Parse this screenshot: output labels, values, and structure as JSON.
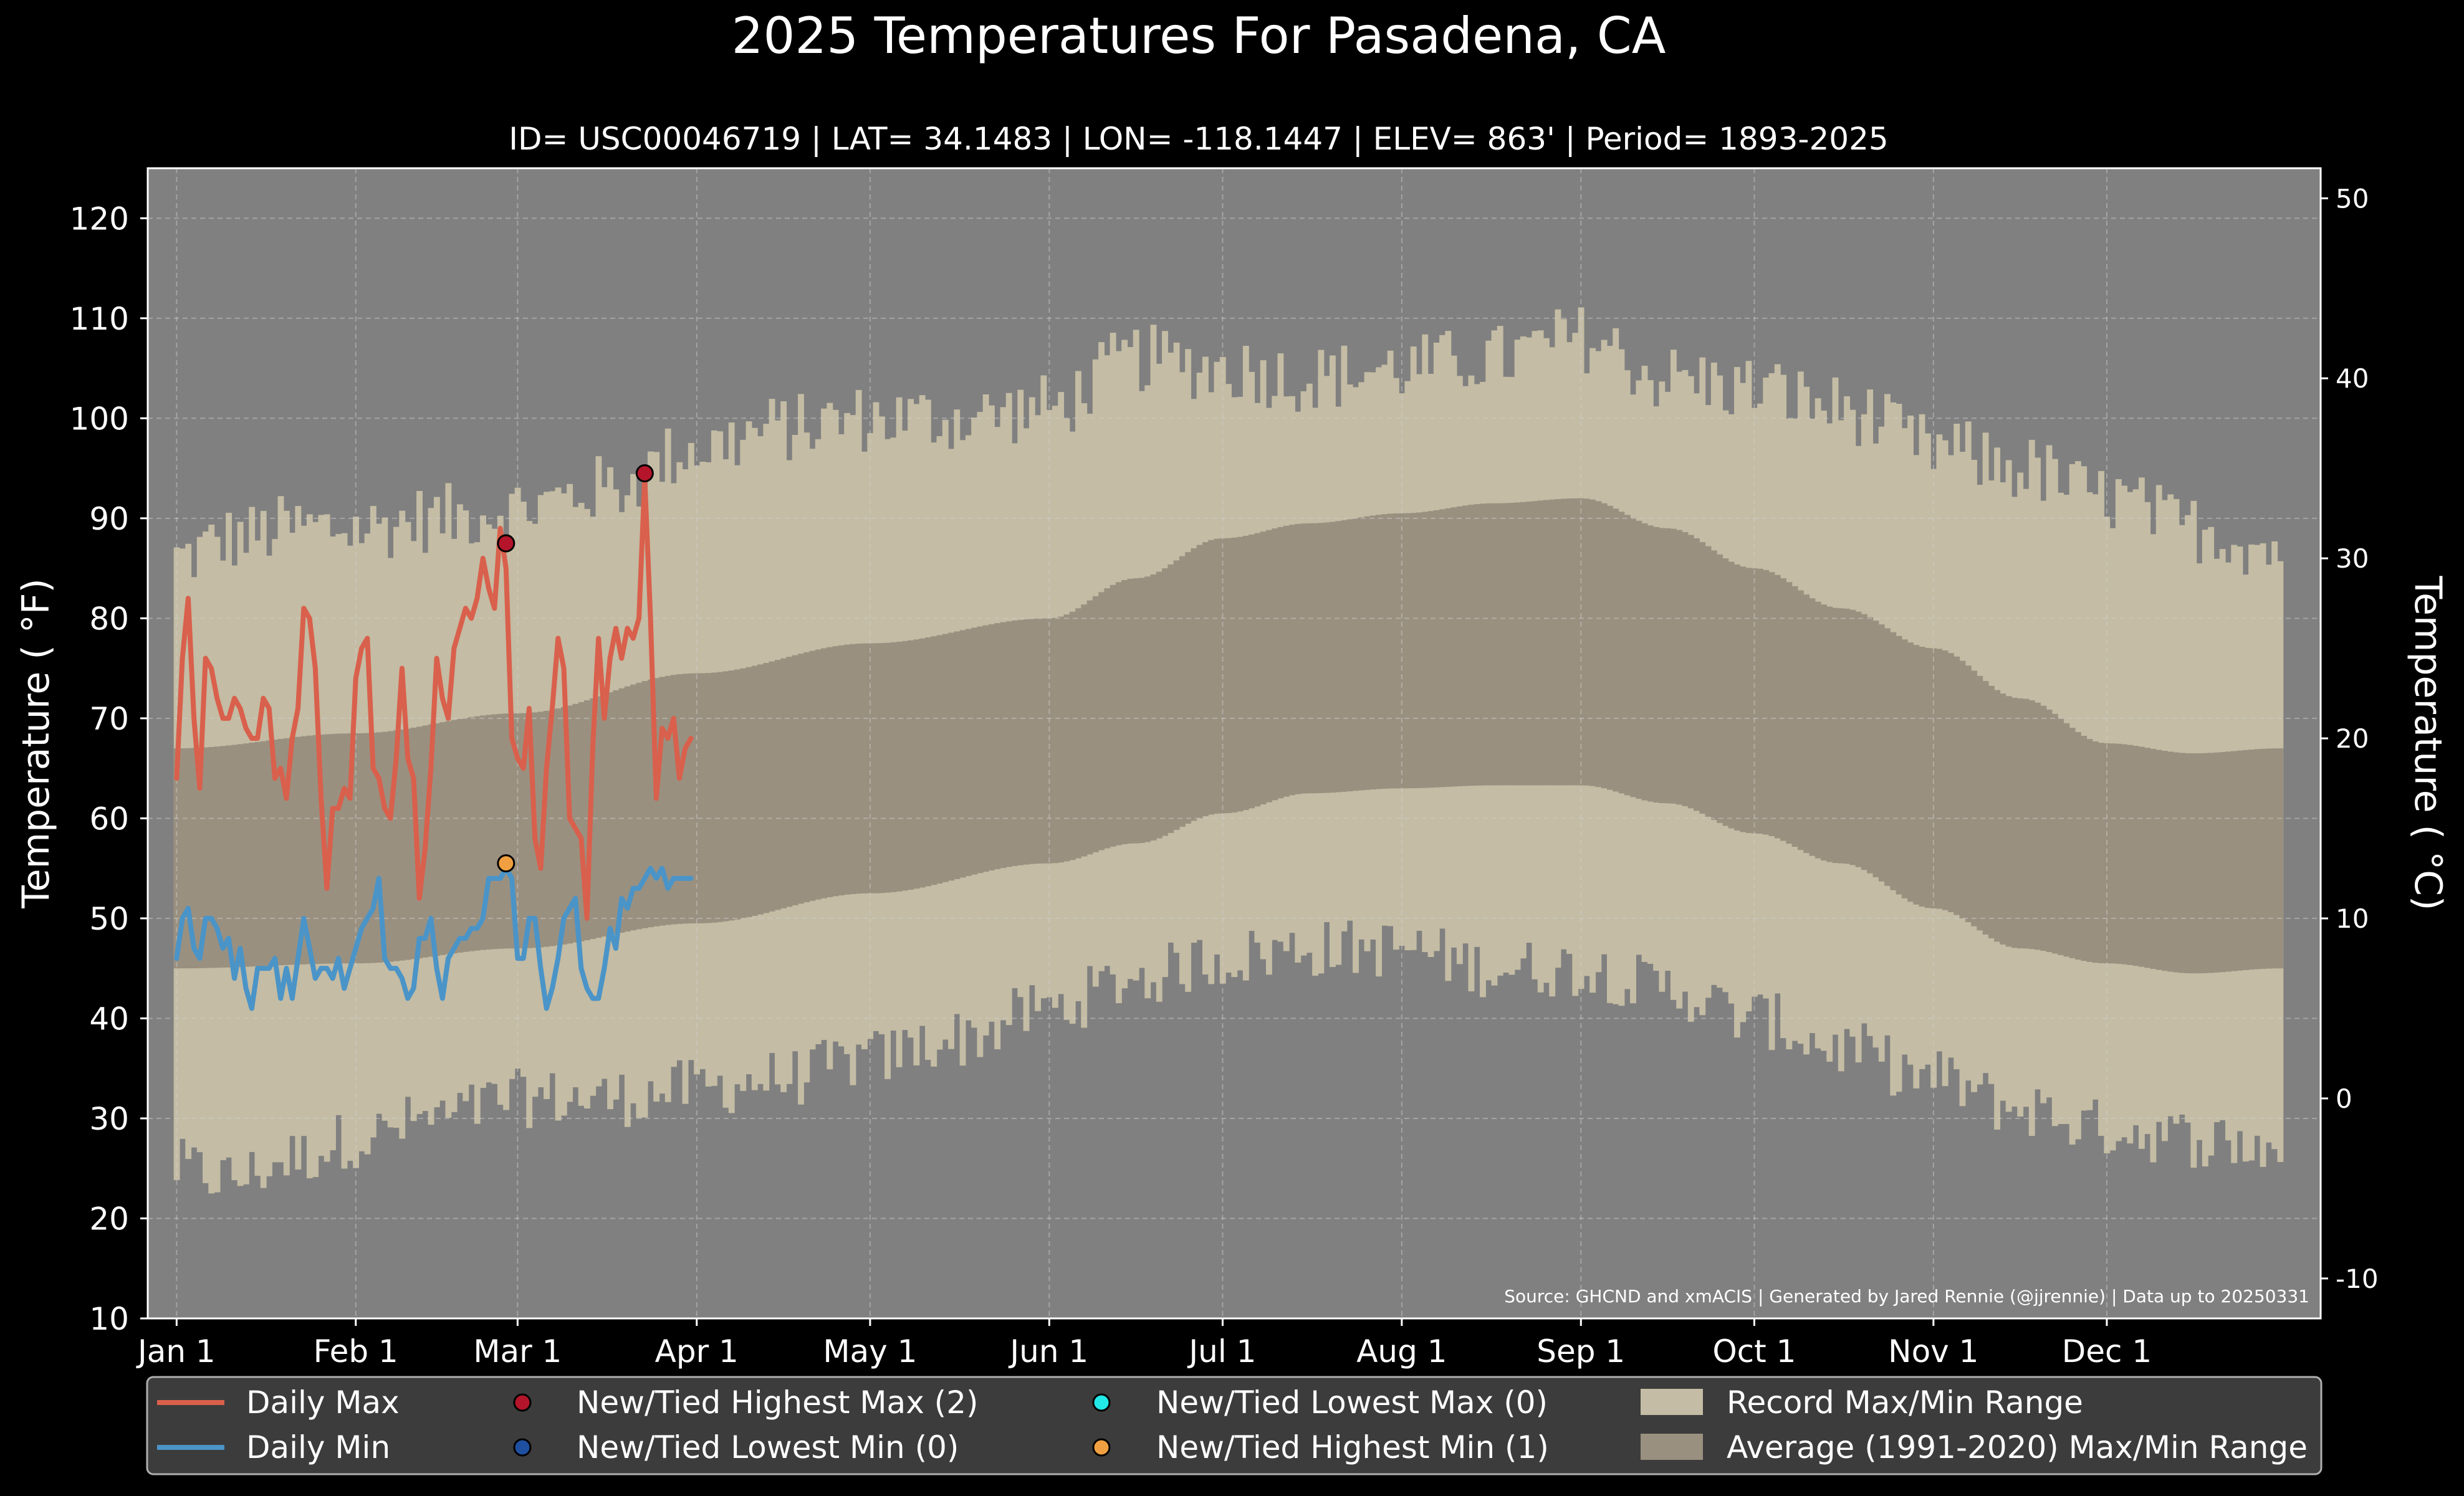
{
  "chart_data": {
    "type": "line",
    "title": "2025 Temperatures For Pasadena, CA",
    "subtitle": "ID= USC00046719 | LAT= 34.1483 | LON= -118.1447 | ELEV= 863' | Period= 1893-2025",
    "ylabel": "Temperature ( °F)",
    "y2label": "Temperature ( °C)",
    "source": "Source: GHCND and xmACIS | Generated by Jared Rennie (@jjrennie) | Data up to 20250331",
    "ylim": [
      10,
      125
    ],
    "y2lim": [
      -12.22,
      51.67
    ],
    "xlim": [
      -5,
      371
    ],
    "y_ticks": [
      10,
      20,
      30,
      40,
      50,
      60,
      70,
      80,
      90,
      100,
      110,
      120
    ],
    "y2_ticks": [
      -10,
      0,
      10,
      20,
      30,
      40,
      50
    ],
    "x_ticks": [
      {
        "label": "Jan 1",
        "day": 0
      },
      {
        "label": "Feb 1",
        "day": 31
      },
      {
        "label": "Mar 1",
        "day": 59
      },
      {
        "label": "Apr 1",
        "day": 90
      },
      {
        "label": "May 1",
        "day": 120
      },
      {
        "label": "Jun 1",
        "day": 151
      },
      {
        "label": "Jul 1",
        "day": 181
      },
      {
        "label": "Aug 1",
        "day": 212
      },
      {
        "label": "Sep 1",
        "day": 243
      },
      {
        "label": "Oct 1",
        "day": 273
      },
      {
        "label": "Nov 1",
        "day": 304
      },
      {
        "label": "Dec 1",
        "day": 334
      }
    ],
    "grid": true,
    "legend_position": "bottom",
    "colors": {
      "background": "#000000",
      "plot_bg": "#808080",
      "record_range": "#c4bca4",
      "normal_range": "#9a9080",
      "daily_max": "#d9604c",
      "daily_min": "#4a94c8",
      "highest_max_marker": "#b5152b",
      "lowest_min_marker": "#1f4fa0",
      "lowest_max_marker": "#22e8e8",
      "highest_min_marker": "#f0a040"
    },
    "legend": {
      "daily_max": "Daily Max",
      "daily_min": "Daily Min",
      "highest_max": "New/Tied Highest Max (2)",
      "lowest_min": "New/Tied Lowest Min (0)",
      "lowest_max": "New/Tied Lowest Max (0)",
      "highest_min": "New/Tied Highest Min (1)",
      "record_range": "Record Max/Min Range",
      "normal_range": "Average (1991-2020) Max/Min Range"
    },
    "record_max_keypoints": {
      "day": [
        0,
        10,
        20,
        31,
        45,
        59,
        75,
        90,
        105,
        120,
        135,
        151,
        166,
        181,
        196,
        212,
        228,
        243,
        258,
        273,
        288,
        304,
        319,
        334,
        349,
        364
      ],
      "value": [
        86,
        88,
        89,
        89,
        90,
        91,
        93,
        97,
        99,
        100,
        100,
        101,
        106,
        105,
        104,
        105,
        106,
        108,
        104,
        103,
        101,
        97,
        95,
        92,
        89,
        87
      ]
    },
    "record_min_keypoints": {
      "day": [
        0,
        10,
        20,
        31,
        45,
        59,
        75,
        90,
        105,
        120,
        135,
        151,
        166,
        181,
        196,
        212,
        228,
        243,
        258,
        273,
        288,
        304,
        319,
        334,
        349,
        364
      ],
      "value": [
        25,
        24,
        26,
        28,
        30,
        32,
        32,
        33,
        34,
        36,
        38,
        41,
        44,
        46,
        47,
        47,
        45,
        45,
        43,
        40,
        37,
        34,
        31,
        29,
        28,
        27
      ]
    },
    "normal_max_keypoints": {
      "day": [
        0,
        31,
        59,
        90,
        120,
        151,
        166,
        181,
        196,
        212,
        228,
        243,
        258,
        273,
        288,
        304,
        319,
        334,
        349,
        364
      ],
      "value": [
        67,
        68.5,
        70.5,
        74.5,
        77.5,
        80,
        84,
        88,
        89.5,
        90.5,
        91.5,
        92,
        89,
        85,
        81,
        77,
        72,
        67.5,
        66.5,
        67
      ]
    },
    "normal_min_keypoints": {
      "day": [
        0,
        31,
        59,
        90,
        120,
        151,
        166,
        181,
        196,
        212,
        228,
        243,
        258,
        273,
        288,
        304,
        319,
        334,
        349,
        364
      ],
      "value": [
        45,
        45.5,
        47,
        49.5,
        52.5,
        55.5,
        57.5,
        60.5,
        62.5,
        63,
        63.3,
        63.3,
        61.5,
        58.5,
        55.5,
        51,
        47,
        45.5,
        44.5,
        45
      ]
    },
    "series": [
      {
        "name": "Daily Max",
        "x": [
          0,
          1,
          2,
          3,
          4,
          5,
          6,
          7,
          8,
          9,
          10,
          11,
          12,
          13,
          14,
          15,
          16,
          17,
          18,
          19,
          20,
          21,
          22,
          23,
          24,
          25,
          26,
          27,
          28,
          29,
          30,
          31,
          32,
          33,
          34,
          35,
          36,
          37,
          38,
          39,
          40,
          41,
          42,
          43,
          44,
          45,
          46,
          47,
          48,
          49,
          50,
          51,
          52,
          53,
          54,
          55,
          56,
          57,
          58,
          59,
          60,
          61,
          62,
          63,
          64,
          65,
          66,
          67,
          68,
          69,
          70,
          71,
          72,
          73,
          74,
          75,
          76,
          77,
          78,
          79,
          80,
          81,
          82,
          83,
          84,
          85,
          86,
          87,
          88,
          89
        ],
        "values": [
          64,
          76,
          82,
          70,
          63,
          76,
          75,
          72,
          70,
          70,
          72,
          71,
          69,
          68,
          68,
          72,
          71,
          64,
          65,
          62,
          68,
          71,
          81,
          80,
          75,
          62,
          53,
          61,
          61,
          63,
          62,
          74,
          77,
          78,
          65,
          64,
          61,
          60,
          66,
          75,
          66,
          64,
          52,
          57,
          65,
          76,
          72,
          70,
          77,
          79,
          81,
          80,
          82,
          86,
          83,
          81,
          89,
          85,
          68,
          66,
          65,
          71,
          58,
          55,
          65,
          71,
          78,
          75,
          60,
          59,
          58,
          50,
          67,
          78,
          70,
          76,
          79,
          76,
          79,
          78,
          80,
          94,
          80,
          62,
          69,
          68,
          70,
          64,
          67,
          68
        ]
      },
      {
        "name": "Daily Min",
        "x": [
          0,
          1,
          2,
          3,
          4,
          5,
          6,
          7,
          8,
          9,
          10,
          11,
          12,
          13,
          14,
          15,
          16,
          17,
          18,
          19,
          20,
          21,
          22,
          23,
          24,
          25,
          26,
          27,
          28,
          29,
          30,
          31,
          32,
          33,
          34,
          35,
          36,
          37,
          38,
          39,
          40,
          41,
          42,
          43,
          44,
          45,
          46,
          47,
          48,
          49,
          50,
          51,
          52,
          53,
          54,
          55,
          56,
          57,
          58,
          59,
          60,
          61,
          62,
          63,
          64,
          65,
          66,
          67,
          68,
          69,
          70,
          71,
          72,
          73,
          74,
          75,
          76,
          77,
          78,
          79,
          80,
          81,
          82,
          83,
          84,
          85,
          86,
          87,
          88,
          89
        ],
        "values": [
          46,
          50,
          51,
          47,
          46,
          50,
          50,
          49,
          47,
          48,
          44,
          47,
          43,
          41,
          45,
          45,
          45,
          46,
          42,
          45,
          42,
          46,
          50,
          47,
          44,
          45,
          45,
          44,
          46,
          43,
          45,
          47,
          49,
          50,
          51,
          54,
          46,
          45,
          45,
          44,
          42,
          43,
          48,
          48,
          50,
          45,
          42,
          46,
          47,
          48,
          48,
          49,
          49,
          50,
          54,
          54,
          54,
          55,
          54,
          46,
          46,
          50,
          50,
          45,
          41,
          43,
          46,
          50,
          51,
          52,
          45,
          43,
          42,
          42,
          45,
          49,
          47,
          52,
          51,
          53,
          53,
          54,
          55,
          54,
          55,
          53,
          54,
          54,
          54,
          54
        ]
      }
    ],
    "record_markers": [
      {
        "type": "highest_max",
        "day": 57,
        "value": 87.5
      },
      {
        "type": "highest_max",
        "day": 81,
        "value": 94.5
      },
      {
        "type": "highest_min",
        "day": 57,
        "value": 55.5
      }
    ]
  }
}
